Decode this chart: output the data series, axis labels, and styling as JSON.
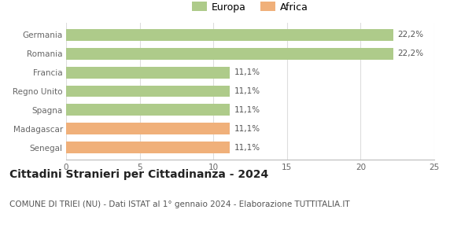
{
  "categories": [
    "Senegal",
    "Madagascar",
    "Spagna",
    "Regno Unito",
    "Francia",
    "Romania",
    "Germania"
  ],
  "values": [
    11.1,
    11.1,
    11.1,
    11.1,
    11.1,
    22.2,
    22.2
  ],
  "bar_colors": [
    "#f0b07a",
    "#f0b07a",
    "#aecb8a",
    "#aecb8a",
    "#aecb8a",
    "#aecb8a",
    "#aecb8a"
  ],
  "labels": [
    "11,1%",
    "11,1%",
    "11,1%",
    "11,1%",
    "11,1%",
    "22,2%",
    "22,2%"
  ],
  "xlim": [
    0,
    25
  ],
  "xticks": [
    0,
    5,
    10,
    15,
    20,
    25
  ],
  "legend_items": [
    {
      "label": "Europa",
      "color": "#aecb8a"
    },
    {
      "label": "Africa",
      "color": "#f0b07a"
    }
  ],
  "title": "Cittadini Stranieri per Cittadinanza - 2024",
  "subtitle": "COMUNE DI TRIEI (NU) - Dati ISTAT al 1° gennaio 2024 - Elaborazione TUTTITALIA.IT",
  "title_fontsize": 10,
  "subtitle_fontsize": 7.5,
  "bar_label_fontsize": 7.5,
  "tick_fontsize": 7.5,
  "background_color": "#ffffff",
  "grid_color": "#dddddd",
  "bar_height": 0.62
}
